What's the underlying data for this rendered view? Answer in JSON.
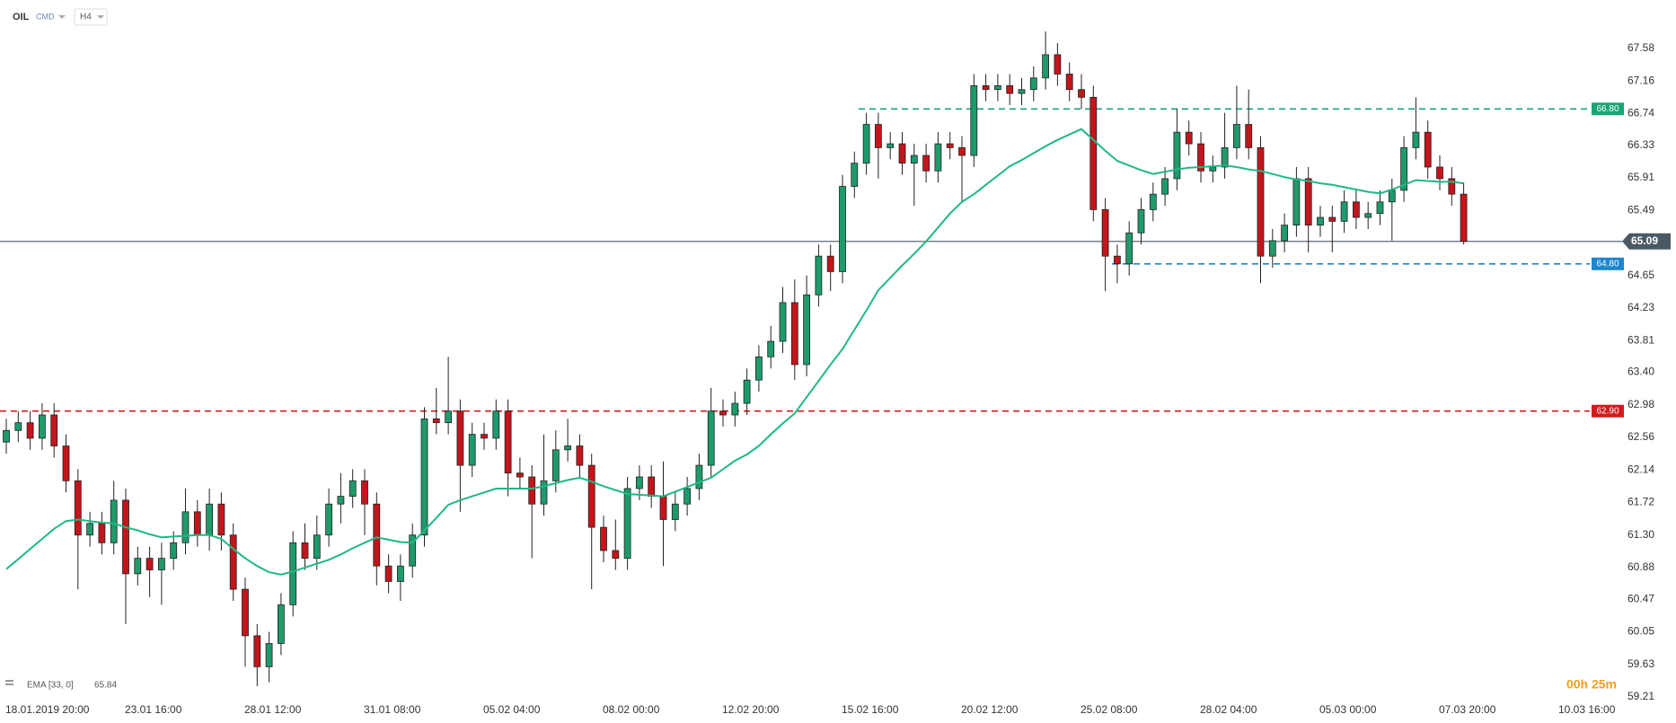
{
  "header": {
    "symbol": "OIL",
    "market": "CMD",
    "interval": "H4"
  },
  "chart_data": {
    "type": "candlestick",
    "categories": [
      "18.01.2019 20:00",
      null,
      null,
      null,
      null,
      null,
      null,
      null,
      null,
      null,
      "23.01 16:00",
      null,
      null,
      null,
      null,
      null,
      null,
      null,
      null,
      null,
      "28.01 12:00",
      null,
      null,
      null,
      null,
      null,
      null,
      null,
      null,
      null,
      "31.01 08:00",
      null,
      null,
      null,
      null,
      null,
      null,
      null,
      null,
      null,
      "05.02 04:00",
      null,
      null,
      null,
      null,
      null,
      null,
      null,
      null,
      null,
      "08.02 00:00",
      null,
      null,
      null,
      null,
      null,
      null,
      null,
      null,
      null,
      "12.02 20:00",
      null,
      null,
      null,
      null,
      null,
      null,
      null,
      null,
      null,
      "15.02 16:00",
      null,
      null,
      null,
      null,
      null,
      null,
      null,
      null,
      null,
      "20.02 12:00",
      null,
      null,
      null,
      null,
      null,
      null,
      null,
      null,
      null,
      "25.02 08:00",
      null,
      null,
      null,
      null,
      null,
      null,
      null,
      null,
      null,
      "28.02 04:00",
      null,
      null,
      null,
      null,
      null,
      null,
      null,
      null,
      null,
      "05.03 00:00",
      null,
      null,
      null,
      null,
      null,
      null,
      null,
      null,
      null,
      "07.03 20:00",
      null,
      null,
      null,
      null,
      null,
      null,
      null,
      null,
      null,
      "10.03 16:00"
    ],
    "open": [
      62.5,
      62.65,
      62.75,
      62.55,
      62.85,
      62.45,
      62.0,
      61.3,
      61.45,
      61.2,
      61.75,
      60.8,
      61.0,
      60.85,
      61.0,
      61.2,
      61.6,
      61.3,
      61.7,
      61.3,
      60.6,
      60.0,
      59.6,
      59.9,
      60.4,
      61.2,
      61.0,
      61.3,
      61.7,
      61.8,
      62.0,
      61.7,
      60.9,
      60.7,
      60.9,
      61.3,
      62.8,
      62.75,
      62.9,
      62.2,
      62.6,
      62.55,
      62.9,
      62.1,
      62.05,
      61.7,
      62.0,
      62.4,
      62.45,
      62.2,
      61.4,
      61.1,
      61.0,
      61.9,
      62.05,
      61.8,
      61.5,
      61.7,
      61.9,
      62.2,
      62.9,
      62.85,
      63.0,
      63.3,
      63.6,
      63.8,
      64.3,
      63.5,
      64.4,
      64.9,
      64.7,
      65.8,
      66.1,
      66.6,
      66.3,
      66.35,
      66.1,
      66.2,
      66.0,
      66.35,
      66.3,
      66.2,
      67.1,
      67.05,
      67.1,
      67.0,
      67.05,
      67.2,
      67.5,
      67.25,
      67.05,
      66.95,
      65.5,
      64.9,
      64.8,
      65.2,
      65.5,
      65.7,
      65.9,
      66.5,
      66.35,
      66.0,
      66.05,
      66.3,
      66.6,
      66.3,
      64.9,
      65.1,
      65.3,
      65.9,
      65.3,
      65.4,
      65.35,
      65.6,
      65.4,
      65.45,
      65.6,
      65.75,
      66.3,
      66.5,
      66.05,
      65.9,
      65.7,
      null,
      null,
      null,
      null,
      null,
      null,
      null,
      null
    ],
    "high": [
      62.8,
      62.9,
      62.9,
      63.0,
      63.0,
      62.6,
      62.15,
      61.6,
      61.6,
      62.0,
      61.9,
      61.15,
      61.15,
      61.2,
      61.35,
      61.9,
      61.75,
      61.9,
      61.85,
      61.45,
      60.75,
      60.15,
      60.05,
      60.55,
      61.35,
      61.45,
      61.55,
      61.9,
      62.1,
      62.15,
      62.15,
      61.85,
      61.05,
      61.05,
      61.45,
      62.95,
      63.2,
      63.6,
      63.05,
      62.75,
      62.75,
      63.05,
      63.05,
      62.3,
      62.2,
      62.6,
      62.65,
      62.8,
      62.6,
      62.35,
      61.55,
      61.5,
      62.05,
      62.2,
      62.2,
      62.25,
      61.85,
      62.05,
      62.35,
      63.2,
      63.05,
      63.15,
      63.45,
      63.75,
      64.0,
      64.5,
      64.6,
      64.65,
      65.05,
      65.05,
      65.95,
      66.25,
      66.75,
      66.75,
      66.5,
      66.5,
      66.35,
      66.35,
      66.5,
      66.5,
      66.45,
      67.25,
      67.25,
      67.25,
      67.25,
      67.2,
      67.35,
      67.8,
      67.65,
      67.4,
      67.25,
      67.1,
      65.65,
      65.05,
      65.35,
      65.65,
      65.85,
      66.05,
      66.8,
      66.65,
      66.5,
      66.2,
      66.75,
      67.1,
      67.05,
      66.45,
      65.25,
      65.45,
      66.05,
      66.05,
      65.55,
      65.55,
      65.75,
      65.75,
      65.6,
      65.75,
      65.9,
      66.45,
      66.95,
      66.65,
      66.2,
      66.05,
      65.85,
      null,
      null,
      null,
      null,
      null,
      null,
      null,
      null
    ],
    "low": [
      62.35,
      62.5,
      62.4,
      62.4,
      62.3,
      61.85,
      60.6,
      61.15,
      61.05,
      61.05,
      60.15,
      60.65,
      60.5,
      60.4,
      60.85,
      61.05,
      61.15,
      61.1,
      61.1,
      60.45,
      59.6,
      59.35,
      59.4,
      59.75,
      60.25,
      60.85,
      60.85,
      61.15,
      61.45,
      61.65,
      61.3,
      60.65,
      60.55,
      60.45,
      60.75,
      61.15,
      62.6,
      62.6,
      61.6,
      62.05,
      62.4,
      62.4,
      61.8,
      61.9,
      61.0,
      61.55,
      61.85,
      62.25,
      62.05,
      60.6,
      60.95,
      60.85,
      60.85,
      61.75,
      61.65,
      60.9,
      61.35,
      61.55,
      61.75,
      62.05,
      62.7,
      62.7,
      62.85,
      63.15,
      63.45,
      63.65,
      63.3,
      63.35,
      64.25,
      64.45,
      64.55,
      65.65,
      65.95,
      65.9,
      66.15,
      65.95,
      65.55,
      65.85,
      65.85,
      66.15,
      65.6,
      66.05,
      66.9,
      66.9,
      66.85,
      66.85,
      66.9,
      67.05,
      67.1,
      66.9,
      66.8,
      65.35,
      64.45,
      64.55,
      64.65,
      65.05,
      65.35,
      65.55,
      65.75,
      66.2,
      65.85,
      65.85,
      65.9,
      66.15,
      66.15,
      64.55,
      64.75,
      64.95,
      65.15,
      64.95,
      65.15,
      64.95,
      65.2,
      65.25,
      65.25,
      65.3,
      65.1,
      65.6,
      66.15,
      65.9,
      65.75,
      65.55,
      65.05,
      null,
      null,
      null,
      null,
      null,
      null,
      null,
      null
    ],
    "close": [
      62.65,
      62.75,
      62.55,
      62.85,
      62.45,
      62.0,
      61.3,
      61.45,
      61.2,
      61.75,
      60.8,
      61.0,
      60.85,
      61.0,
      61.2,
      61.6,
      61.3,
      61.7,
      61.3,
      60.6,
      60.0,
      59.6,
      59.9,
      60.4,
      61.2,
      61.0,
      61.3,
      61.7,
      61.8,
      62.0,
      61.7,
      60.9,
      60.7,
      60.9,
      61.3,
      62.8,
      62.75,
      62.9,
      62.2,
      62.6,
      62.55,
      62.9,
      62.1,
      62.05,
      61.7,
      62.0,
      62.4,
      62.45,
      62.2,
      61.4,
      61.1,
      61.0,
      61.9,
      62.05,
      61.8,
      61.5,
      61.7,
      61.9,
      62.2,
      62.9,
      62.85,
      63.0,
      63.3,
      63.6,
      63.8,
      64.3,
      63.5,
      64.4,
      64.9,
      64.7,
      65.8,
      66.1,
      66.6,
      66.3,
      66.35,
      66.1,
      66.2,
      66.0,
      66.35,
      66.3,
      66.2,
      67.1,
      67.05,
      67.1,
      67.0,
      67.05,
      67.2,
      67.5,
      67.25,
      67.05,
      66.95,
      65.5,
      64.9,
      64.8,
      65.2,
      65.5,
      65.7,
      65.9,
      66.5,
      66.35,
      66.0,
      66.05,
      66.3,
      66.6,
      66.3,
      64.9,
      65.1,
      65.3,
      65.9,
      65.3,
      65.4,
      65.35,
      65.6,
      65.4,
      65.45,
      65.6,
      65.75,
      66.3,
      66.5,
      66.05,
      65.9,
      65.7,
      65.09,
      null,
      null,
      null,
      null,
      null,
      null,
      null,
      null
    ],
    "up_color": "#1e9a6b",
    "down_color": "#c3151b",
    "series": [
      {
        "name": "EMA [33, 0]",
        "color": "#1fb985",
        "values": [
          60.86,
          60.99,
          61.12,
          61.25,
          61.38,
          61.48,
          61.5,
          61.48,
          61.46,
          61.45,
          61.4,
          61.36,
          61.31,
          61.27,
          61.28,
          61.29,
          61.3,
          61.3,
          61.25,
          61.12,
          61.0,
          60.9,
          60.82,
          60.79,
          60.83,
          60.88,
          60.93,
          60.98,
          61.05,
          61.13,
          61.2,
          61.27,
          61.24,
          61.21,
          61.2,
          61.36,
          61.52,
          61.69,
          61.75,
          61.8,
          61.85,
          61.9,
          61.9,
          61.9,
          61.9,
          61.93,
          61.97,
          62.01,
          62.04,
          61.99,
          61.93,
          61.88,
          61.83,
          61.82,
          61.81,
          61.8,
          61.86,
          61.92,
          61.98,
          62.04,
          62.15,
          62.26,
          62.34,
          62.45,
          62.6,
          62.74,
          62.87,
          63.08,
          63.29,
          63.5,
          63.7,
          63.95,
          64.2,
          64.46,
          64.62,
          64.78,
          64.93,
          65.09,
          65.27,
          65.45,
          65.6,
          65.7,
          65.82,
          65.94,
          66.06,
          66.14,
          66.23,
          66.32,
          66.4,
          66.47,
          66.54,
          66.4,
          66.26,
          66.13,
          66.07,
          66.01,
          65.96,
          65.99,
          66.02,
          66.04,
          66.05,
          66.06,
          66.07,
          66.05,
          66.02,
          66.0,
          65.96,
          65.92,
          65.89,
          65.87,
          65.84,
          65.82,
          65.79,
          65.76,
          65.73,
          65.71,
          65.76,
          65.82,
          65.88,
          65.87,
          65.86,
          65.86,
          65.84,
          null,
          null,
          null,
          null,
          null,
          null,
          null,
          null
        ]
      }
    ],
    "ylim": [
      59.21,
      67.58
    ],
    "yticks": [
      67.58,
      67.16,
      66.74,
      66.33,
      65.91,
      65.49,
      64.65,
      64.23,
      63.81,
      {
        "value": 63.4,
        "label": "63.40"
      },
      62.98,
      62.56,
      62.14,
      61.72,
      {
        "value": 61.3,
        "label": "61.30"
      },
      60.88,
      60.47,
      60.05,
      59.63,
      59.21
    ],
    "levels": [
      {
        "value": 66.8,
        "label": "66.80",
        "color": "#1aa578"
      },
      {
        "value": 64.8,
        "label": "64.80",
        "color": "#1c86cf"
      },
      {
        "value": 62.9,
        "label": "62.90",
        "color": "#d11b1b"
      }
    ],
    "current_price": {
      "value": 65.09,
      "color": "#4b5964"
    },
    "countdown": "00h 25m"
  }
}
